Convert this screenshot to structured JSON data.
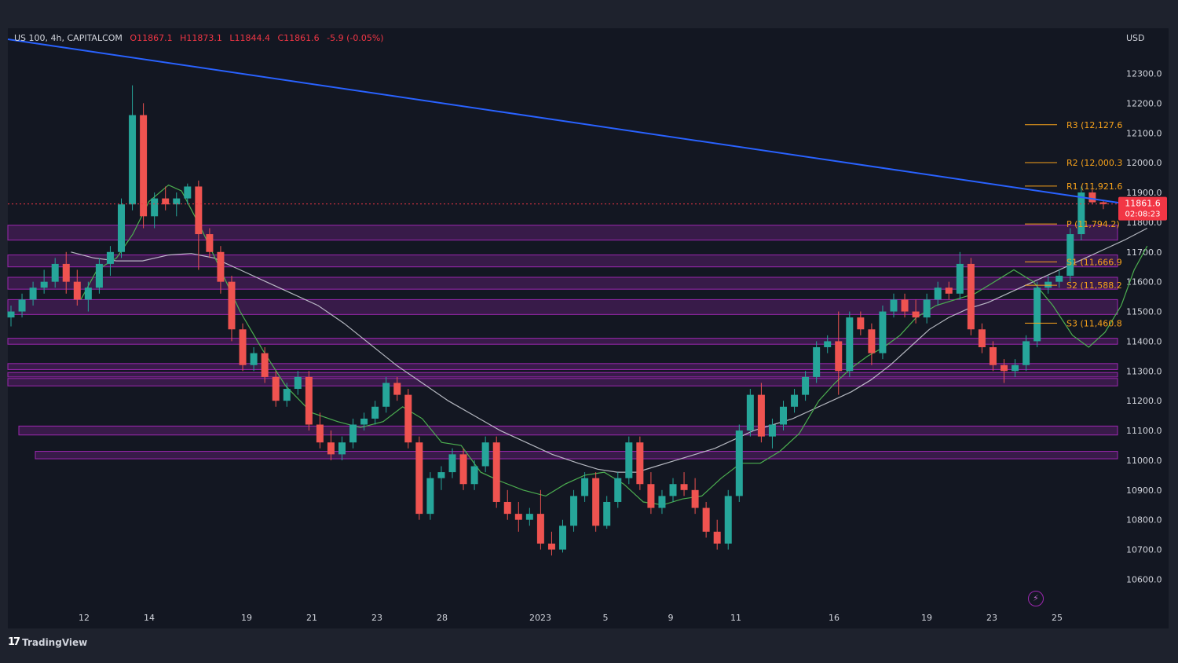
{
  "header": {
    "symbol": "US 100, 4h, CAPITALCOM",
    "open": "O11867.1",
    "high": "H11873.1",
    "low": "L11844.4",
    "close": "C11861.6",
    "change": "-5.9 (-0.05%)"
  },
  "currency": "USD",
  "branding": {
    "name": "TradingView",
    "logo_glyph": "17"
  },
  "price_tag": {
    "price": "11861.6",
    "countdown": "02:08:23"
  },
  "colors": {
    "background": "#1e222d",
    "bull": "#26a69a",
    "bear": "#ef5350",
    "trendline": "#2962ff",
    "zone": "#9c27b0",
    "pivot": "#f7a21b",
    "ma_fast": "#4caf50",
    "ma_slow": "#d1d4dc",
    "price_tag": "#f23645"
  },
  "chart_data": {
    "type": "candlestick",
    "symbol": "US 100",
    "timeframe": "4h",
    "y_range": [
      10560,
      12380
    ],
    "y_ticks": [
      "12300.0",
      "12200.0",
      "12100.0",
      "12000.0",
      "11900.0",
      "11800.0",
      "11700.0",
      "11600.0",
      "11500.0",
      "11400.0",
      "11300.0",
      "11200.0",
      "11100.0",
      "11000.0",
      "10900.0",
      "10800.0",
      "10700.0",
      "10600.0"
    ],
    "x_ticks": [
      "12",
      "14",
      "19",
      "21",
      "23",
      "28",
      "2023",
      "5",
      "9",
      "11",
      "16",
      "19",
      "23",
      "25"
    ],
    "last_price": 11861.6,
    "pivots": [
      {
        "label": "R3 (12,127.6",
        "value": 12127.6
      },
      {
        "label": "R2 (12,000.3",
        "value": 12000.3
      },
      {
        "label": "R1 (11,921.6",
        "value": 11921.6
      },
      {
        "label": "P (11,794.2)",
        "value": 11794.2
      },
      {
        "label": "S1 (11,666.9",
        "value": 11666.9
      },
      {
        "label": "S2 (11,588.2",
        "value": 11588.2
      },
      {
        "label": "S3 (11,460.8",
        "value": 11460.8
      }
    ],
    "zones": [
      {
        "low": 11740,
        "high": 11790
      },
      {
        "low": 11650,
        "high": 11690
      },
      {
        "low": 11575,
        "high": 11615
      },
      {
        "low": 11490,
        "high": 11540
      },
      {
        "low": 11390,
        "high": 11410
      },
      {
        "low": 11305,
        "high": 11325
      },
      {
        "low": 11280,
        "high": 11295
      },
      {
        "low": 11250,
        "high": 11275
      },
      {
        "low": 11085,
        "high": 11115
      },
      {
        "low": 11005,
        "high": 11030
      }
    ],
    "trendline": [
      [
        12,
        12330
      ],
      [
        24.9,
        11865
      ]
    ],
    "ma_fast": [
      [
        11.9,
        11540
      ],
      [
        12.4,
        11640
      ],
      [
        13,
        11680
      ],
      [
        13.5,
        11760
      ],
      [
        14,
        11870
      ],
      [
        14.6,
        11925
      ],
      [
        15,
        11905
      ],
      [
        15.6,
        11780
      ],
      [
        16.2,
        11640
      ],
      [
        16.8,
        11500
      ],
      [
        17.5,
        11370
      ],
      [
        18.2,
        11250
      ],
      [
        19,
        11160
      ],
      [
        19.8,
        11130
      ],
      [
        20.5,
        11110
      ],
      [
        21.2,
        11130
      ],
      [
        21.8,
        11180
      ],
      [
        22.4,
        11140
      ],
      [
        23,
        11060
      ],
      [
        23.6,
        11050
      ],
      [
        24.2,
        10960
      ],
      [
        24.8,
        10930
      ],
      [
        25.5,
        10900
      ],
      [
        26.2,
        10880
      ],
      [
        26.8,
        10920
      ],
      [
        27.4,
        10950
      ],
      [
        28,
        10960
      ],
      [
        28.6,
        10920
      ],
      [
        29.2,
        10860
      ],
      [
        29.8,
        10850
      ],
      [
        30.4,
        10870
      ],
      [
        31,
        10880
      ],
      [
        31.6,
        10940
      ],
      [
        32.2,
        10990
      ],
      [
        32.8,
        10990
      ],
      [
        33.4,
        11030
      ],
      [
        34,
        11090
      ],
      [
        34.6,
        11200
      ],
      [
        35.1,
        11260
      ],
      [
        35.6,
        11310
      ],
      [
        36.1,
        11350
      ],
      [
        36.6,
        11380
      ],
      [
        37.1,
        11420
      ],
      [
        37.6,
        11480
      ],
      [
        38.2,
        11520
      ],
      [
        38.8,
        11540
      ],
      [
        39.4,
        11560
      ],
      [
        40,
        11600
      ],
      [
        40.6,
        11640
      ],
      [
        41.2,
        11600
      ],
      [
        41.8,
        11520
      ],
      [
        42.4,
        11420
      ],
      [
        42.9,
        11380
      ],
      [
        43.4,
        11430
      ],
      [
        43.9,
        11520
      ],
      [
        44.3,
        11640
      ],
      [
        44.7,
        11720
      ]
    ],
    "ma_slow": [
      [
        11.6,
        11700
      ],
      [
        12.3,
        11680
      ],
      [
        13,
        11670
      ],
      [
        13.8,
        11670
      ],
      [
        14.6,
        11690
      ],
      [
        15.3,
        11695
      ],
      [
        16,
        11680
      ],
      [
        16.8,
        11640
      ],
      [
        17.6,
        11600
      ],
      [
        18.4,
        11560
      ],
      [
        19.2,
        11520
      ],
      [
        20,
        11460
      ],
      [
        20.8,
        11390
      ],
      [
        21.6,
        11320
      ],
      [
        22.4,
        11260
      ],
      [
        23.2,
        11200
      ],
      [
        24,
        11150
      ],
      [
        24.8,
        11100
      ],
      [
        25.6,
        11060
      ],
      [
        26.4,
        11020
      ],
      [
        27.2,
        10990
      ],
      [
        27.8,
        10970
      ],
      [
        28.4,
        10960
      ],
      [
        29,
        10960
      ],
      [
        29.6,
        10980
      ],
      [
        30.2,
        11000
      ],
      [
        30.8,
        11020
      ],
      [
        31.4,
        11040
      ],
      [
        32,
        11070
      ],
      [
        32.6,
        11100
      ],
      [
        33.2,
        11120
      ],
      [
        33.8,
        11140
      ],
      [
        34.4,
        11170
      ],
      [
        35,
        11200
      ],
      [
        35.6,
        11230
      ],
      [
        36.2,
        11270
      ],
      [
        36.8,
        11320
      ],
      [
        37.4,
        11380
      ],
      [
        38,
        11440
      ],
      [
        38.6,
        11480
      ],
      [
        39.2,
        11510
      ],
      [
        39.8,
        11530
      ],
      [
        40.4,
        11560
      ],
      [
        41,
        11590
      ],
      [
        41.6,
        11620
      ],
      [
        42.2,
        11650
      ],
      [
        42.8,
        11680
      ],
      [
        43.4,
        11710
      ],
      [
        44,
        11740
      ],
      [
        44.7,
        11780
      ]
    ],
    "candles_x_start": 11.6,
    "candles_x_step": 0.2,
    "candles": [
      [
        11480,
        11520,
        11450,
        11500
      ],
      [
        11500,
        11560,
        11480,
        11540
      ],
      [
        11540,
        11600,
        11520,
        11580
      ],
      [
        11580,
        11640,
        11560,
        11600
      ],
      [
        11600,
        11680,
        11580,
        11660
      ],
      [
        11660,
        11700,
        11560,
        11600
      ],
      [
        11600,
        11640,
        11520,
        11540
      ],
      [
        11540,
        11600,
        11500,
        11580
      ],
      [
        11580,
        11680,
        11560,
        11660
      ],
      [
        11660,
        11720,
        11620,
        11700
      ],
      [
        11700,
        11880,
        11680,
        11860
      ],
      [
        11860,
        12260,
        11840,
        12160
      ],
      [
        12160,
        12200,
        11780,
        11820
      ],
      [
        11820,
        11900,
        11780,
        11880
      ],
      [
        11880,
        11920,
        11840,
        11860
      ],
      [
        11860,
        11900,
        11820,
        11880
      ],
      [
        11880,
        11930,
        11860,
        11920
      ],
      [
        11920,
        11940,
        11640,
        11760
      ],
      [
        11760,
        11780,
        11680,
        11700
      ],
      [
        11700,
        11720,
        11560,
        11600
      ],
      [
        11600,
        11620,
        11400,
        11440
      ],
      [
        11440,
        11460,
        11300,
        11320
      ],
      [
        11320,
        11380,
        11300,
        11360
      ],
      [
        11360,
        11380,
        11260,
        11280
      ],
      [
        11280,
        11300,
        11180,
        11200
      ],
      [
        11200,
        11260,
        11180,
        11240
      ],
      [
        11240,
        11300,
        11220,
        11280
      ],
      [
        11280,
        11300,
        11100,
        11120
      ],
      [
        11120,
        11160,
        11040,
        11060
      ],
      [
        11060,
        11100,
        11000,
        11020
      ],
      [
        11020,
        11080,
        11000,
        11060
      ],
      [
        11060,
        11140,
        11040,
        11120
      ],
      [
        11120,
        11160,
        11100,
        11140
      ],
      [
        11140,
        11200,
        11120,
        11180
      ],
      [
        11180,
        11280,
        11160,
        11260
      ],
      [
        11260,
        11280,
        11200,
        11220
      ],
      [
        11220,
        11240,
        11040,
        11060
      ],
      [
        11060,
        11080,
        10800,
        10820
      ],
      [
        10820,
        10960,
        10800,
        10940
      ],
      [
        10940,
        10980,
        10900,
        10960
      ],
      [
        10960,
        11040,
        10940,
        11020
      ],
      [
        11020,
        11040,
        10900,
        10920
      ],
      [
        10920,
        11000,
        10900,
        10980
      ],
      [
        10980,
        11080,
        10960,
        11060
      ],
      [
        11060,
        11080,
        10840,
        10860
      ],
      [
        10860,
        10900,
        10800,
        10820
      ],
      [
        10820,
        10860,
        10760,
        10800
      ],
      [
        10800,
        10840,
        10780,
        10820
      ],
      [
        10820,
        10900,
        10700,
        10720
      ],
      [
        10720,
        10760,
        10680,
        10700
      ],
      [
        10700,
        10800,
        10690,
        10780
      ],
      [
        10780,
        10900,
        10760,
        10880
      ],
      [
        10880,
        10960,
        10860,
        10940
      ],
      [
        10940,
        10960,
        10760,
        10780
      ],
      [
        10780,
        10880,
        10770,
        10860
      ],
      [
        10860,
        10960,
        10840,
        10940
      ],
      [
        10940,
        11080,
        10920,
        11060
      ],
      [
        11060,
        11080,
        10900,
        10920
      ],
      [
        10920,
        10960,
        10820,
        10840
      ],
      [
        10840,
        10900,
        10820,
        10880
      ],
      [
        10880,
        10940,
        10860,
        10920
      ],
      [
        10920,
        10960,
        10880,
        10900
      ],
      [
        10900,
        10940,
        10820,
        10840
      ],
      [
        10840,
        10860,
        10740,
        10760
      ],
      [
        10760,
        10800,
        10700,
        10720
      ],
      [
        10720,
        10900,
        10700,
        10880
      ],
      [
        10880,
        11120,
        10860,
        11100
      ],
      [
        11100,
        11240,
        11080,
        11220
      ],
      [
        11220,
        11260,
        11060,
        11080
      ],
      [
        11080,
        11140,
        11040,
        11120
      ],
      [
        11120,
        11200,
        11100,
        11180
      ],
      [
        11180,
        11240,
        11160,
        11220
      ],
      [
        11220,
        11300,
        11200,
        11280
      ],
      [
        11280,
        11400,
        11260,
        11380
      ],
      [
        11380,
        11420,
        11360,
        11400
      ],
      [
        11400,
        11500,
        11220,
        11300
      ],
      [
        11300,
        11500,
        11280,
        11480
      ],
      [
        11480,
        11500,
        11420,
        11440
      ],
      [
        11440,
        11460,
        11320,
        11360
      ],
      [
        11360,
        11520,
        11340,
        11500
      ],
      [
        11500,
        11560,
        11480,
        11540
      ],
      [
        11540,
        11560,
        11480,
        11500
      ],
      [
        11500,
        11540,
        11460,
        11480
      ],
      [
        11480,
        11560,
        11460,
        11540
      ],
      [
        11540,
        11600,
        11520,
        11580
      ],
      [
        11580,
        11600,
        11540,
        11560
      ],
      [
        11560,
        11700,
        11540,
        11660
      ],
      [
        11660,
        11680,
        11420,
        11440
      ],
      [
        11440,
        11460,
        11360,
        11380
      ],
      [
        11380,
        11400,
        11300,
        11320
      ],
      [
        11320,
        11340,
        11260,
        11300
      ],
      [
        11300,
        11340,
        11280,
        11320
      ],
      [
        11320,
        11420,
        11300,
        11400
      ],
      [
        11400,
        11600,
        11380,
        11580
      ],
      [
        11580,
        11620,
        11560,
        11600
      ],
      [
        11600,
        11640,
        11580,
        11620
      ],
      [
        11620,
        11780,
        11600,
        11760
      ],
      [
        11760,
        11920,
        11740,
        11900
      ],
      [
        11900,
        11910,
        11860,
        11867
      ],
      [
        11867,
        11873,
        11844,
        11861
      ]
    ]
  }
}
